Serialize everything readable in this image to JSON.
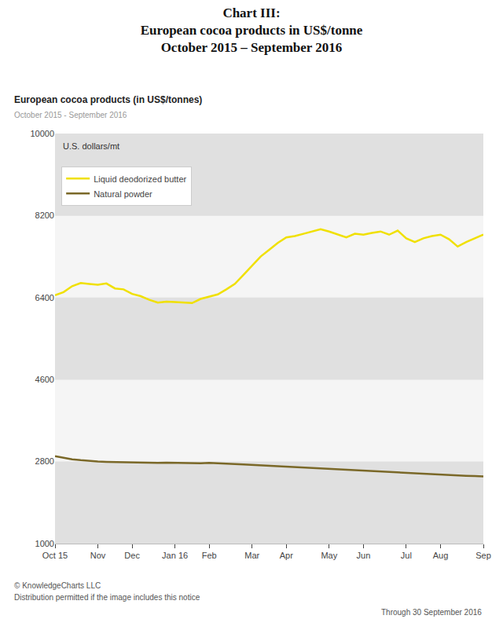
{
  "chart_data": {
    "type": "line",
    "title": [
      "Chart III:",
      "European cocoa products in US$/tonne",
      "October 2015 – September 2016"
    ],
    "subtitle": [
      "European cocoa products (in US$/tonnes)",
      "October 2015 - September 2016"
    ],
    "ylabel": "U.S. dollars/mt",
    "annotations": [
      "© KnowledgeCharts LLC",
      "Distribution permitted if the image includes this notice",
      "Through 30 September 2016"
    ],
    "categories": [
      "Oct 15",
      null,
      null,
      null,
      null,
      "Nov",
      null,
      null,
      null,
      "Dec",
      null,
      null,
      null,
      null,
      "Jan 16",
      null,
      null,
      null,
      "Feb",
      null,
      null,
      null,
      null,
      "Mar",
      null,
      null,
      null,
      "Apr",
      null,
      null,
      null,
      null,
      "May",
      null,
      null,
      null,
      "Jun",
      null,
      null,
      null,
      null,
      "Jul",
      null,
      null,
      null,
      "Aug",
      null,
      null,
      null,
      null,
      "Sep"
    ],
    "series": [
      {
        "name": "Liquid deodorized butter",
        "color": "#f0e000",
        "values": [
          6450,
          6520,
          6650,
          6720,
          6700,
          6680,
          6710,
          6600,
          6580,
          6480,
          6430,
          6350,
          6290,
          6310,
          6300,
          6290,
          6280,
          6370,
          6420,
          6470,
          6580,
          6700,
          6900,
          7100,
          7300,
          7450,
          7600,
          7720,
          7750,
          7800,
          7850,
          7900,
          7850,
          7780,
          7720,
          7800,
          7780,
          7820,
          7850,
          7780,
          7870,
          7700,
          7620,
          7700,
          7750,
          7780,
          7680,
          7520,
          7620,
          7700,
          7780
        ]
      },
      {
        "name": "Natural powder",
        "color": "#7a6828",
        "values": [
          2920,
          2880,
          2850,
          2830,
          2810,
          2800,
          2795,
          2790,
          2785,
          2780,
          2775,
          2770,
          2770,
          2775,
          2770,
          2765,
          2760,
          2765,
          2770,
          2765,
          2755,
          2745,
          2735,
          2725,
          2715,
          2705,
          2695,
          2685,
          2675,
          2665,
          2655,
          2645,
          2635,
          2625,
          2615,
          2605,
          2595,
          2585,
          2575,
          2565,
          2555,
          2545,
          2535,
          2525,
          2515,
          2508,
          2502,
          2492,
          2488,
          2482,
          2472
        ]
      }
    ],
    "ylim": [
      1000,
      10000
    ],
    "yticks": [
      1000,
      2800,
      4600,
      6400,
      8200,
      10000
    ],
    "grid": false,
    "legend": "upper left"
  }
}
